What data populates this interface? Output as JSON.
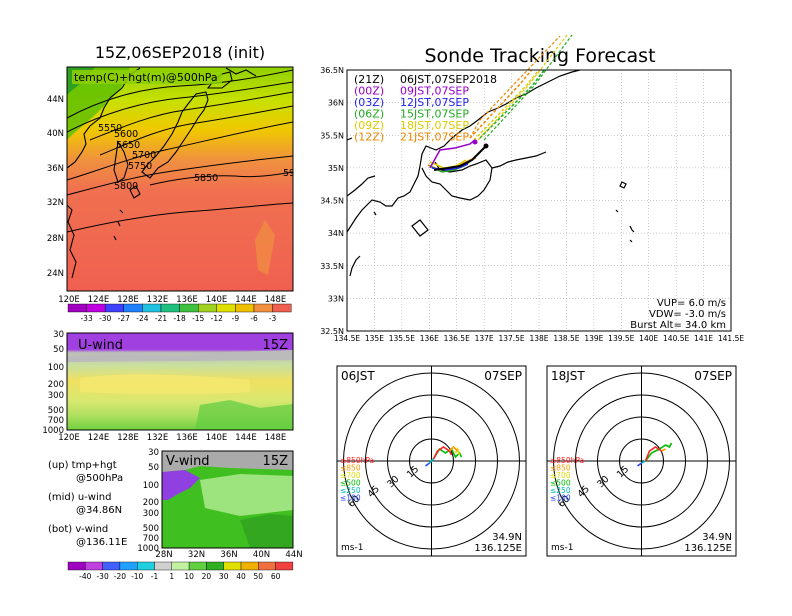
{
  "map_panel": {
    "title": "15Z,06SEP2018 (init)",
    "label": "temp(C)+hgt(m)@500hPa",
    "lat_ticks": [
      "44N",
      "40N",
      "36N",
      "32N",
      "28N",
      "24N"
    ],
    "lon_ticks": [
      "120E",
      "124E",
      "128E",
      "132E",
      "136E",
      "140E",
      "144E",
      "148E"
    ],
    "contour_labels": [
      "5550",
      "5600",
      "5650",
      "5700",
      "5750",
      "5800",
      "5850",
      "59"
    ],
    "colorbar_labels": [
      "-33",
      "-30",
      "-27",
      "-24",
      "-21",
      "-18",
      "-15",
      "-12",
      "-9",
      "-6",
      "-3"
    ]
  },
  "u_panel": {
    "label": "U-wind",
    "time": "15Z",
    "p_ticks": [
      "30",
      "50",
      "100",
      "200",
      "300",
      "500",
      "700",
      "1000"
    ],
    "lon_ticks": [
      "120E",
      "124E",
      "128E",
      "132E",
      "136E",
      "140E",
      "144E",
      "148E"
    ]
  },
  "v_panel": {
    "label": "V-wind",
    "time": "15Z",
    "p_ticks": [
      "30",
      "50",
      "100",
      "200",
      "300",
      "500",
      "700",
      "1000"
    ],
    "lat_ticks": [
      "28N",
      "32N",
      "36N",
      "40N",
      "44N"
    ],
    "colorbar_labels": [
      "-40",
      "-30",
      "-20",
      "-10",
      "-1",
      "1",
      "10",
      "20",
      "30",
      "40",
      "50",
      "60"
    ]
  },
  "legend": {
    "up1": "(up)  tmp+hgt",
    "up2": "@500hPa",
    "mid1": "(mid)  u-wind",
    "mid2": "@34.86N",
    "bot1": "(bot)  v-wind",
    "bot2": "@136.11E"
  },
  "track_panel": {
    "title": "Sonde Tracking Forecast",
    "lat_ticks": [
      "36.5N",
      "36N",
      "35.5N",
      "35N",
      "34.5N",
      "34N",
      "33.5N",
      "33N",
      "32.5N"
    ],
    "lon_ticks": [
      "134.5E",
      "135E",
      "135.5E",
      "136E",
      "136.5E",
      "137E",
      "137.5E",
      "138E",
      "138.5E",
      "139E",
      "139.5E",
      "140E",
      "140.5E",
      "141E",
      "141.5E"
    ],
    "launches": [
      {
        "code": "(21Z)",
        "time": "06JST,07SEP2018",
        "color": "#000000"
      },
      {
        "code": "(00Z)",
        "time": "09JST,07SEP",
        "color": "#9900cc"
      },
      {
        "code": "(03Z)",
        "time": "12JST,07SEP",
        "color": "#2222ee"
      },
      {
        "code": "(06Z)",
        "time": "15JST,07SEP",
        "color": "#22aa22"
      },
      {
        "code": "(09Z)",
        "time": "18JST,07SEP",
        "color": "#ddcc00"
      },
      {
        "code": "(12Z)",
        "time": "21JST,07SEP",
        "color": "#ee8800"
      }
    ],
    "params": [
      "VUP=  6.0  m/s",
      "VDW= -3.0  m/s",
      "Burst Alt=  34.0  km"
    ]
  },
  "hodographs": [
    {
      "time": "06JST",
      "date": "07SEP",
      "lat": "34.9N",
      "lon": "136.125E",
      "unit": "ms-1",
      "ring_labels": [
        "15",
        "30",
        "45",
        "60"
      ],
      "layers": [
        {
          "text": "≥850hPa",
          "color": "#ff2222"
        },
        {
          "text": "≤850",
          "color": "#ff9900"
        },
        {
          "text": "≤700",
          "color": "#dddd00"
        },
        {
          "text": "≤500",
          "color": "#00bb00"
        },
        {
          "text": "≤250",
          "color": "#00bbbb"
        },
        {
          "text": "≤100",
          "color": "#2244ff"
        }
      ]
    },
    {
      "time": "18JST",
      "date": "07SEP",
      "lat": "34.9N",
      "lon": "136.125E",
      "unit": "ms-1",
      "ring_labels": [
        "15",
        "30",
        "45",
        "60"
      ],
      "layers": [
        {
          "text": "≥850hPa",
          "color": "#ff2222"
        },
        {
          "text": "≤850",
          "color": "#ff9900"
        },
        {
          "text": "≤700",
          "color": "#dddd00"
        },
        {
          "text": "≤500",
          "color": "#00bb00"
        },
        {
          "text": "≤250",
          "color": "#00bbbb"
        },
        {
          "text": "≤100",
          "color": "#2244ff"
        }
      ]
    }
  ]
}
